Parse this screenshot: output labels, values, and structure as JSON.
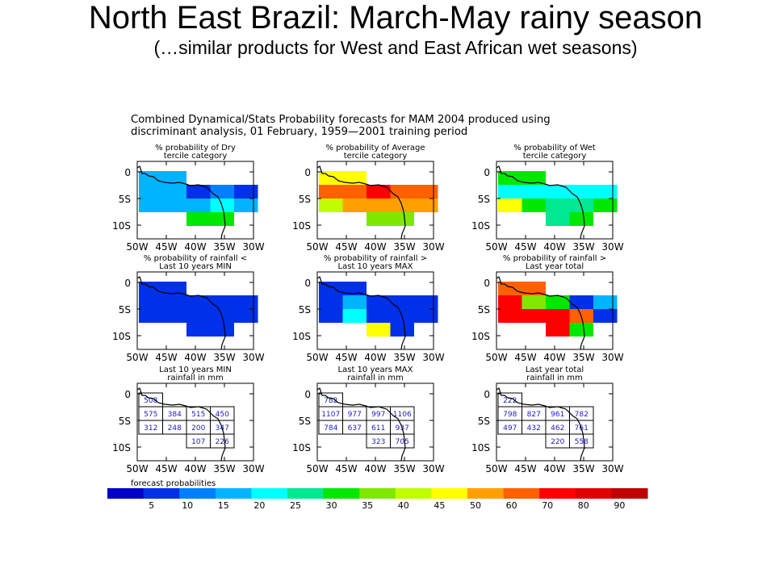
{
  "slide": {
    "title": "North East Brazil: March-May rainy season",
    "subtitle": "(…similar products for West and East African wet seasons)"
  },
  "chart_data": {
    "type": "heatmap",
    "title_lines": [
      "Combined Dynamical/Stats Probability forecasts for MAM 2004 produced using",
      "discriminant analysis, 01 February, 1959—2001 training period"
    ],
    "x_ticks": [
      "50W",
      "45W",
      "40W",
      "35W",
      "30W"
    ],
    "y_ticks": [
      "0",
      "5S",
      "10S"
    ],
    "colorbar": {
      "label": "forecast probabilities",
      "colors": [
        "#0000c8",
        "#0030e8",
        "#0080ff",
        "#00b4ff",
        "#00ffff",
        "#00e890",
        "#00e800",
        "#80e800",
        "#c0ff00",
        "#ffff00",
        "#ffa000",
        "#ff6000",
        "#ff0000",
        "#e00000",
        "#c00000"
      ],
      "ticks": [
        "5",
        "10",
        "15",
        "20",
        "25",
        "30",
        "35",
        "40",
        "45",
        "50",
        "60",
        "70",
        "80",
        "90"
      ]
    },
    "panels": [
      {
        "title": [
          "% probability of Dry",
          "tercile category"
        ],
        "kind": "color",
        "cells": [
          [
            {
              "c": "#00b4ff"
            },
            {
              "c": "#00b4ff"
            },
            null,
            null,
            null
          ],
          [
            {
              "c": "#00b4ff"
            },
            {
              "c": "#00b4ff"
            },
            {
              "c": "#0030e8"
            },
            {
              "c": "#0080ff"
            },
            {
              "c": "#0030e8"
            }
          ],
          [
            {
              "c": "#00b4ff"
            },
            {
              "c": "#00b4ff"
            },
            {
              "c": "#00b4ff"
            },
            {
              "c": "#00ffff"
            },
            {
              "c": "#00b4ff"
            }
          ],
          [
            null,
            null,
            {
              "c": "#00e800"
            },
            {
              "c": "#00e800"
            },
            null
          ]
        ]
      },
      {
        "title": [
          "% probability of Average",
          "tercile category"
        ],
        "kind": "color",
        "cells": [
          [
            {
              "c": "#ffff00"
            },
            {
              "c": "#ffff00"
            },
            null,
            null,
            null
          ],
          [
            {
              "c": "#ff6000"
            },
            {
              "c": "#ff6000"
            },
            {
              "c": "#ff0000"
            },
            {
              "c": "#ff6000"
            },
            {
              "c": "#ff6000"
            }
          ],
          [
            {
              "c": "#c0ff00"
            },
            {
              "c": "#ffa000"
            },
            {
              "c": "#ffa000"
            },
            {
              "c": "#ffa000"
            },
            {
              "c": "#ffa000"
            }
          ],
          [
            null,
            null,
            {
              "c": "#80e800"
            },
            {
              "c": "#80e800"
            },
            null
          ]
        ]
      },
      {
        "title": [
          "% probability of Wet",
          "tercile category"
        ],
        "kind": "color",
        "cells": [
          [
            {
              "c": "#00e800"
            },
            {
              "c": "#00e800"
            },
            null,
            null,
            null
          ],
          [
            {
              "c": "#00ffff"
            },
            {
              "c": "#00ffff"
            },
            {
              "c": "#00ffff"
            },
            {
              "c": "#00ffff"
            },
            {
              "c": "#00ffff"
            }
          ],
          [
            {
              "c": "#ffff00"
            },
            {
              "c": "#00e800"
            },
            {
              "c": "#00e890"
            },
            {
              "c": "#00e890"
            },
            {
              "c": "#00e800"
            }
          ],
          [
            null,
            null,
            {
              "c": "#00e890"
            },
            {
              "c": "#00e800"
            },
            null
          ]
        ]
      },
      {
        "title": [
          "% probability of rainfall <",
          "Last 10 years MIN"
        ],
        "kind": "color",
        "cells": [
          [
            {
              "c": "#0030e8"
            },
            {
              "c": "#0030e8"
            },
            null,
            null,
            null
          ],
          [
            {
              "c": "#0030e8"
            },
            {
              "c": "#0030e8"
            },
            {
              "c": "#0030e8"
            },
            {
              "c": "#0030e8"
            },
            {
              "c": "#0030e8"
            }
          ],
          [
            {
              "c": "#0030e8"
            },
            {
              "c": "#0030e8"
            },
            {
              "c": "#0030e8"
            },
            {
              "c": "#0030e8"
            },
            {
              "c": "#0030e8"
            }
          ],
          [
            null,
            null,
            {
              "c": "#0030e8"
            },
            {
              "c": "#0030e8"
            },
            null
          ]
        ]
      },
      {
        "title": [
          "% probability of rainfall >",
          "Last 10 years MAX"
        ],
        "kind": "color",
        "cells": [
          [
            {
              "c": "#0030e8"
            },
            {
              "c": "#0030e8"
            },
            null,
            null,
            null
          ],
          [
            {
              "c": "#0030e8"
            },
            {
              "c": "#00b4ff"
            },
            {
              "c": "#0030e8"
            },
            {
              "c": "#0030e8"
            },
            {
              "c": "#0030e8"
            }
          ],
          [
            {
              "c": "#0030e8"
            },
            {
              "c": "#00ffff"
            },
            {
              "c": "#0030e8"
            },
            {
              "c": "#0030e8"
            },
            {
              "c": "#0030e8"
            }
          ],
          [
            null,
            null,
            {
              "c": "#ffff00"
            },
            {
              "c": "#0030e8"
            },
            null
          ]
        ]
      },
      {
        "title": [
          "% probability of rainfall >",
          "Last year total"
        ],
        "kind": "color",
        "cells": [
          [
            {
              "c": "#ff6000"
            },
            {
              "c": "#ff6000"
            },
            null,
            null,
            null
          ],
          [
            {
              "c": "#ff0000"
            },
            {
              "c": "#80e800"
            },
            {
              "c": "#00e800"
            },
            {
              "c": "#0030e8"
            },
            {
              "c": "#00b4ff"
            }
          ],
          [
            {
              "c": "#ff0000"
            },
            {
              "c": "#ff0000"
            },
            {
              "c": "#ff0000"
            },
            {
              "c": "#ff6000"
            },
            {
              "c": "#0030e8"
            }
          ],
          [
            null,
            null,
            {
              "c": "#ff0000"
            },
            {
              "c": "#00e800"
            },
            null
          ]
        ]
      },
      {
        "title": [
          "Last 10 years MIN",
          "rainfall in mm"
        ],
        "kind": "values",
        "cells": [
          [
            {
              "v": "508"
            },
            null,
            null,
            null,
            null
          ],
          [
            {
              "v": "575"
            },
            {
              "v": "384"
            },
            {
              "v": "515"
            },
            {
              "v": "450"
            },
            null
          ],
          [
            {
              "v": "312"
            },
            {
              "v": "248"
            },
            {
              "v": "200"
            },
            {
              "v": "347"
            },
            null
          ],
          [
            null,
            null,
            {
              "v": "107"
            },
            {
              "v": "226"
            },
            null
          ]
        ]
      },
      {
        "title": [
          "Last 10 years MAX",
          "rainfall in mm"
        ],
        "kind": "values",
        "cells": [
          [
            {
              "v": "782"
            },
            null,
            null,
            null,
            null
          ],
          [
            {
              "v": "1107"
            },
            {
              "v": "977"
            },
            {
              "v": "997"
            },
            {
              "v": "1106"
            },
            null
          ],
          [
            {
              "v": "784"
            },
            {
              "v": "637"
            },
            {
              "v": "611"
            },
            {
              "v": "937"
            },
            null
          ],
          [
            null,
            null,
            {
              "v": "323"
            },
            {
              "v": "705"
            },
            null
          ]
        ]
      },
      {
        "title": [
          "Last year total",
          "rainfall in mm"
        ],
        "kind": "values",
        "cells": [
          [
            {
              "v": "222"
            },
            null,
            null,
            null,
            null
          ],
          [
            {
              "v": "798"
            },
            {
              "v": "827"
            },
            {
              "v": "961"
            },
            {
              "v": "782"
            },
            null
          ],
          [
            {
              "v": "497"
            },
            {
              "v": "432"
            },
            {
              "v": "462"
            },
            {
              "v": "761"
            },
            null
          ],
          [
            null,
            null,
            {
              "v": "220"
            },
            {
              "v": "558"
            },
            null
          ]
        ]
      }
    ]
  }
}
